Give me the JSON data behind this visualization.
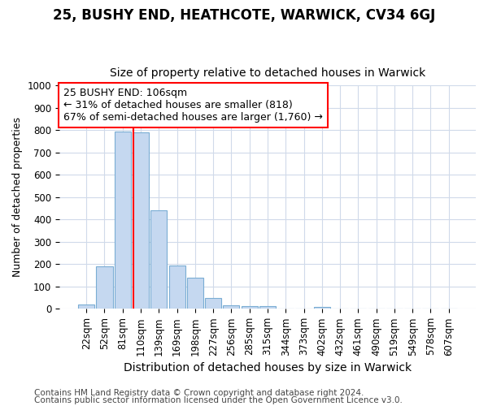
{
  "title1": "25, BUSHY END, HEATHCOTE, WARWICK, CV34 6GJ",
  "title2": "Size of property relative to detached houses in Warwick",
  "xlabel": "Distribution of detached houses by size in Warwick",
  "ylabel": "Number of detached properties",
  "bar_labels": [
    "22sqm",
    "52sqm",
    "81sqm",
    "110sqm",
    "139sqm",
    "169sqm",
    "198sqm",
    "227sqm",
    "256sqm",
    "285sqm",
    "315sqm",
    "344sqm",
    "373sqm",
    "402sqm",
    "432sqm",
    "461sqm",
    "490sqm",
    "519sqm",
    "549sqm",
    "578sqm",
    "607sqm"
  ],
  "bar_values": [
    20,
    190,
    795,
    790,
    440,
    195,
    140,
    50,
    15,
    12,
    12,
    0,
    0,
    10,
    0,
    0,
    0,
    0,
    0,
    0,
    0
  ],
  "bar_color": "#c5d8f0",
  "bar_edgecolor": "#7aadd4",
  "vline_color": "red",
  "vline_pos": 2.575,
  "annotation_text": "25 BUSHY END: 106sqm\n← 31% of detached houses are smaller (818)\n67% of semi-detached houses are larger (1,760) →",
  "annotation_box_color": "white",
  "annotation_box_edgecolor": "red",
  "ylim": [
    0,
    1000
  ],
  "yticks": [
    0,
    100,
    200,
    300,
    400,
    500,
    600,
    700,
    800,
    900,
    1000
  ],
  "footer1": "Contains HM Land Registry data © Crown copyright and database right 2024.",
  "footer2": "Contains public sector information licensed under the Open Government Licence v3.0.",
  "bg_color": "#ffffff",
  "plot_bg_color": "#ffffff",
  "grid_color": "#d0daea",
  "title1_fontsize": 12,
  "title2_fontsize": 10,
  "xlabel_fontsize": 10,
  "ylabel_fontsize": 9,
  "tick_fontsize": 8.5,
  "annotation_fontsize": 9,
  "footer_fontsize": 7.5
}
